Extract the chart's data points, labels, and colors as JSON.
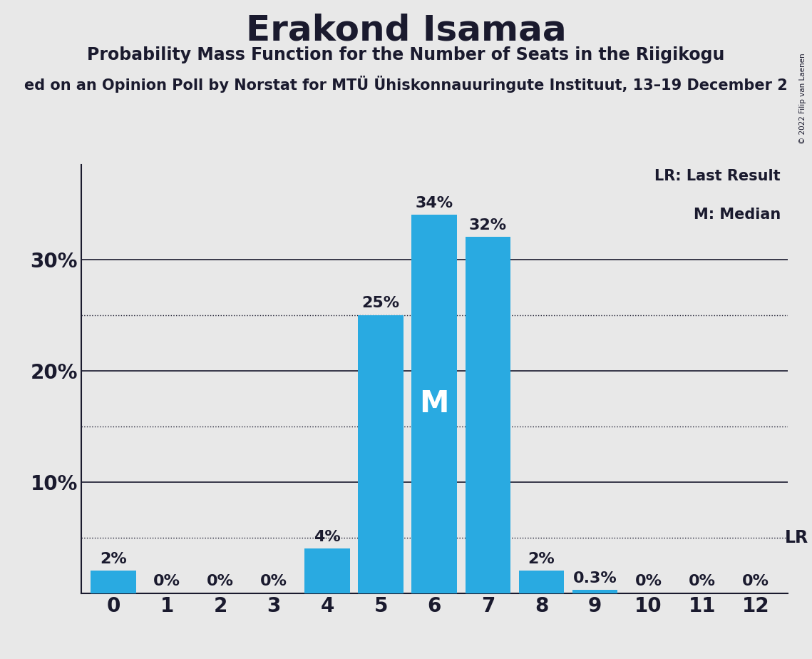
{
  "title": "Erakond Isamaa",
  "subtitle": "Probability Mass Function for the Number of Seats in the Riigikogu",
  "subsubtitle": "ed on an Opinion Poll by Norstat for MTÜ Ühiskonnauuringute Instituut, 13–19 December 2",
  "copyright": "© 2022 Filip van Laenen",
  "categories": [
    0,
    1,
    2,
    3,
    4,
    5,
    6,
    7,
    8,
    9,
    10,
    11,
    12
  ],
  "values": [
    0.02,
    0.0,
    0.0,
    0.0,
    0.04,
    0.25,
    0.34,
    0.32,
    0.02,
    0.003,
    0.0,
    0.0,
    0.0
  ],
  "bar_labels": [
    "2%",
    "0%",
    "0%",
    "0%",
    "4%",
    "25%",
    "34%",
    "32%",
    "2%",
    "0.3%",
    "0%",
    "0%",
    "0%"
  ],
  "bar_color": "#29aae1",
  "median_bar": 6,
  "median_label": "M",
  "lr_value": 0.05,
  "lr_label": "LR",
  "background_color": "#e8e8e8",
  "title_fontsize": 36,
  "subtitle_fontsize": 17,
  "subsubtitle_fontsize": 15,
  "ylabel_fontsize": 20,
  "bar_label_fontsize": 16,
  "xtick_fontsize": 20,
  "yticks": [
    0.0,
    0.1,
    0.2,
    0.3
  ],
  "ytick_labels": [
    "",
    "10%",
    "20%",
    "30%"
  ],
  "dotted_lines": [
    0.05,
    0.15,
    0.25
  ],
  "ylim": [
    0,
    0.385
  ],
  "solid_line_color": "#1a1a2e",
  "legend_lr_text": "LR: Last Result",
  "legend_m_text": "M: Median"
}
